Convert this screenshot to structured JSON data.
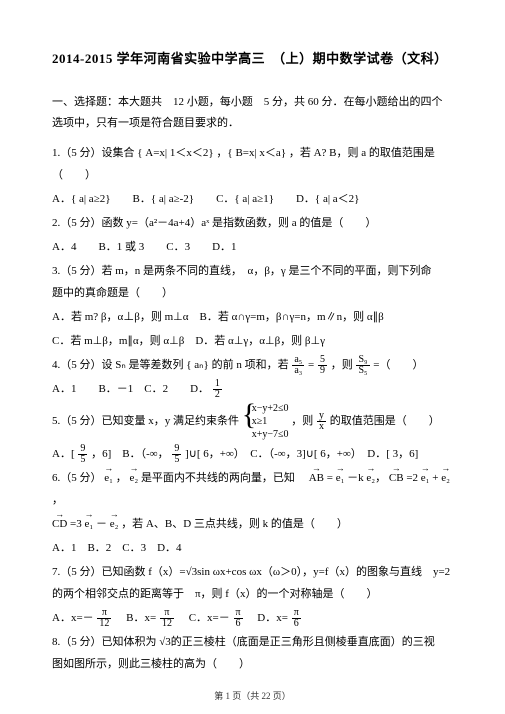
{
  "title": "2014-2015 学年河南省实验中学高三　（上）期中数学试卷（文科）",
  "section1_l1": "一、选择题：本大题共　12 小题，每小题　5 分，共 60 分．在每小题给出的四个",
  "section1_l2": "选项中，只有一项是符合题目要求的．",
  "q1": "1.（5 分）设集合 { A=x| 1＜x＜2} ，{ B=x| x＜a} ，若 A? B，则 a 的取值范围是（　　）",
  "q1_opts": "A．{ a| a≥2}　　B．{ a| a≥-2}　　C．{ a| a≥1}　　D．{ a| a＜2}",
  "q2": "2.（5 分）函数 y=（a²－4a+4）aˣ 是指数函数，则 a 的值是（　　）",
  "q2_opts": "A．4　　B．1 或 3　　C．3　　D．1",
  "q3_l1": "3.（5 分）若 m，n 是两条不同的直线，　α，β，γ 是三个不同的平面，则下列命",
  "q3_l2": "题中的真命题是（　　）",
  "q3_oA": "A．若 m? β，α⊥β，则 m⊥α　B．若 α∩γ=m，β∩γ=n，m∥n，则 α∥β",
  "q3_oC": "C．若 m⊥β，m∥α，则 α⊥β　D．若 α⊥γ，α⊥β，则 β⊥γ",
  "q4_pre": "4.（5 分）设 Sₙ 是等差数列 { aₙ} 的前 n 项和，若",
  "q4_f1n": "a₅",
  "q4_f1d": "a₃",
  "q4_mid1": "=",
  "q4_f2n": "5",
  "q4_f2d": "9",
  "q4_mid2": "，则",
  "q4_f3n": "S₉",
  "q4_f3d": "S₅",
  "q4_post": "=（　　）",
  "q4_opts_pre": "A．1　　B．－1　C．2　　D．",
  "q4_oDn": "1",
  "q4_oDd": "2",
  "q5_pre": "5.（5 分）已知变量 x，y 满足约束条件",
  "q5_c1": "x−y+2≤0",
  "q5_c2": "x≥1",
  "q5_c3": "x+y−7≤0",
  "q5_mid": "，则",
  "q5_fn": "y",
  "q5_fd": "x",
  "q5_post": "的取值范围是（　　）",
  "q5_oA_pre": "A．[",
  "q5_oA_n": "9",
  "q5_oA_d": "5",
  "q5_oA_post": "，6]　B．（-∞，",
  "q5_oB_n": "9",
  "q5_oB_d": "5",
  "q5_oB_post": "]∪[ 6，+∞）　C．（-∞，3]∪[ 6，+∞）　D．[ 3，6]",
  "q6_l1_pre": "6.（5 分）",
  "q6_e1": "e₁",
  "q6_e2": "e₂",
  "q6_l1_mid": "，",
  "q6_l1_post": "是平面内不共线的两向量，已知　",
  "q6_AB": "AB",
  "q6_eq1": "=",
  "q6_t1": "－k",
  "q6_CB": "CB",
  "q6_eq2": "=2",
  "q6_t2": "+",
  "q6_l2_pre": "",
  "q6_CD": "CD",
  "q6_eq3": "=3",
  "q6_t3": "－",
  "q6_l2_post": "，若 A、B、D 三点共线，则 k 的值是（　　）",
  "q6_opts": "A．1　B．2　C．3　D．4",
  "q7_l1": "7.（5 分）已知函数 f（x）=√3sin ωx+cos ωx（ω＞0），y=f（x）的图象与直线　y=2",
  "q7_l2": "的两个相邻交点的距离等于　π，则 f（x）的一个对称轴是（　　）",
  "q7_oA": "A．x=－",
  "q7_n": "π",
  "q7_d": "12",
  "q7_oB": "　B．x=",
  "q7_oC": "　C．x=－",
  "q7_n2": "π",
  "q7_d2": "6",
  "q7_oD": "　D．x=",
  "q8_l1": "8.（5 分）已知体积为 √3的正三棱柱（底面是正三角形且侧棱垂直底面）的三视",
  "q8_l2": "图如图所示，则此三棱柱的高为（　　）",
  "footer": "第 1 页（共 22 页）"
}
